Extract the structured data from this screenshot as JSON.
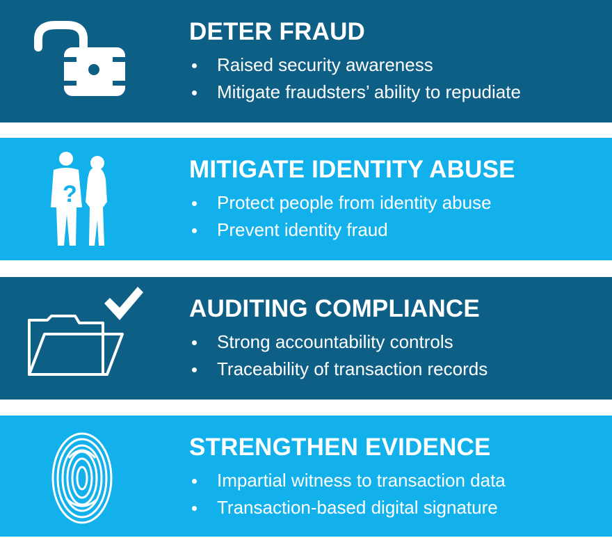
{
  "colors": {
    "dark_panel": "#0e5f86",
    "light_panel": "#12b1ec",
    "text": "#ffffff"
  },
  "panels": [
    {
      "icon": "open-padlock-icon",
      "title": "DETER FRAUD",
      "bullets": [
        "Raised security awareness",
        "Mitigate fraudsters’ ability to repudiate"
      ]
    },
    {
      "icon": "people-question-icon",
      "title": "MITIGATE IDENTITY ABUSE",
      "bullets": [
        "Protect people from identity abuse",
        "Prevent identity fraud"
      ]
    },
    {
      "icon": "folder-check-icon",
      "title": "AUDITING COMPLIANCE",
      "bullets": [
        "Strong accountability controls",
        "Traceability of transaction records"
      ]
    },
    {
      "icon": "fingerprint-icon",
      "title": "STRENGTHEN EVIDENCE",
      "bullets": [
        "Impartial witness to transaction data",
        "Transaction-based digital signature"
      ]
    }
  ]
}
